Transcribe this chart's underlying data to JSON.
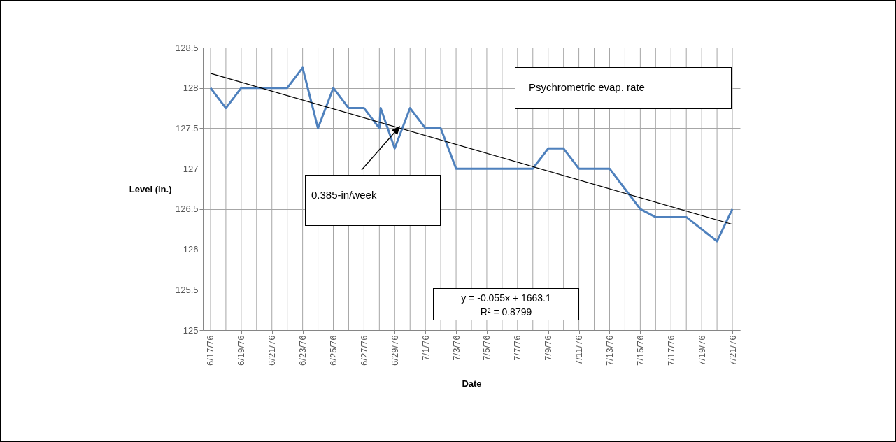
{
  "chart_data": {
    "type": "line",
    "xlabel": "Date",
    "ylabel": "Level (in.)",
    "x": [
      "1976-06-17",
      "1976-06-18",
      "1976-06-19",
      "1976-06-20",
      "1976-06-21",
      "1976-06-22",
      "1976-06-23",
      "1976-06-24",
      "1976-06-25",
      "1976-06-26",
      "1976-06-27",
      "1976-06-28T00:00",
      "1976-06-28T02:00",
      "1976-06-29",
      "1976-06-30",
      "1976-07-01",
      "1976-07-02",
      "1976-07-03",
      "1976-07-04",
      "1976-07-05",
      "1976-07-06",
      "1976-07-07",
      "1976-07-08",
      "1976-07-09",
      "1976-07-10",
      "1976-07-11",
      "1976-07-12",
      "1976-07-13",
      "1976-07-14",
      "1976-07-15",
      "1976-07-16",
      "1976-07-17",
      "1976-07-18",
      "1976-07-19",
      "1976-07-20",
      "1976-07-21"
    ],
    "series": [
      {
        "color": "#4f81bd",
        "values": [
          128,
          127.75,
          128,
          128,
          128,
          128,
          128.25,
          127.5,
          128,
          127.75,
          127.75,
          127.5,
          127.75,
          127.25,
          127.75,
          127.5,
          127.5,
          127,
          127,
          127,
          127,
          127,
          127,
          127.25,
          127.25,
          127,
          127,
          127,
          126.75,
          126.5,
          126.4,
          126.4,
          126.4,
          126.25,
          126.1,
          126.5
        ]
      },
      {
        "color": "#000000",
        "x": [
          "1976-06-17",
          "1976-07-21"
        ],
        "values": [
          128.18,
          126.31
        ]
      }
    ],
    "xlim": [
      "1976-06-16T12:00",
      "1976-07-21T12:00"
    ],
    "xticks": [
      {
        "value": "1976-06-17",
        "label": "6/17/76"
      },
      {
        "value": "1976-06-18",
        "label": null
      },
      {
        "value": "1976-06-19",
        "label": "6/19/76"
      },
      {
        "value": "1976-06-20",
        "label": null
      },
      {
        "value": "1976-06-21",
        "label": "6/21/76"
      },
      {
        "value": "1976-06-22",
        "label": null
      },
      {
        "value": "1976-06-23",
        "label": "6/23/76"
      },
      {
        "value": "1976-06-24",
        "label": null
      },
      {
        "value": "1976-06-25",
        "label": "6/25/76"
      },
      {
        "value": "1976-06-26",
        "label": null
      },
      {
        "value": "1976-06-27",
        "label": "6/27/76"
      },
      {
        "value": "1976-06-28",
        "label": null
      },
      {
        "value": "1976-06-29",
        "label": "6/29/76"
      },
      {
        "value": "1976-06-30",
        "label": null
      },
      {
        "value": "1976-07-01",
        "label": "7/1/76"
      },
      {
        "value": "1976-07-02",
        "label": null
      },
      {
        "value": "1976-07-03",
        "label": "7/3/76"
      },
      {
        "value": "1976-07-04",
        "label": null
      },
      {
        "value": "1976-07-05",
        "label": "7/5/76"
      },
      {
        "value": "1976-07-06",
        "label": null
      },
      {
        "value": "1976-07-07",
        "label": "7/7/76"
      },
      {
        "value": "1976-07-08",
        "label": null
      },
      {
        "value": "1976-07-09",
        "label": "7/9/76"
      },
      {
        "value": "1976-07-10",
        "label": null
      },
      {
        "value": "1976-07-11",
        "label": "7/11/76"
      },
      {
        "value": "1976-07-12",
        "label": null
      },
      {
        "value": "1976-07-13",
        "label": "7/13/76"
      },
      {
        "value": "1976-07-14",
        "label": null
      },
      {
        "value": "1976-07-15",
        "label": "7/15/76"
      },
      {
        "value": "1976-07-16",
        "label": null
      },
      {
        "value": "1976-07-17",
        "label": "7/17/76"
      },
      {
        "value": "1976-07-18",
        "label": null
      },
      {
        "value": "1976-07-19",
        "label": "7/19/76"
      },
      {
        "value": "1976-07-20",
        "label": null
      },
      {
        "value": "1976-07-21",
        "label": "7/21/76"
      }
    ],
    "ylim": [
      125,
      128.5
    ],
    "yticks": [
      125,
      125.5,
      126,
      126.5,
      127,
      127.5,
      128,
      128.5
    ],
    "grid": true,
    "annotations": [
      "Psychrometric evap. rate",
      "0.385-in/week",
      "y = -0.055x + 1663.1",
      "R² = 0.8799"
    ]
  }
}
